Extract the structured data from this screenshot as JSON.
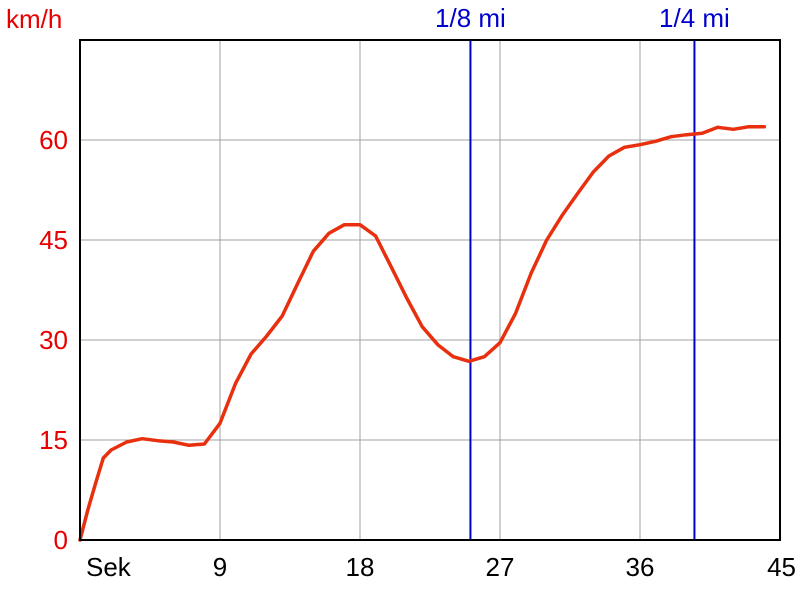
{
  "chart_data": {
    "type": "line",
    "title": "",
    "xlabel": "",
    "ylabel": "km/h",
    "x_unit_label": "Sek",
    "xlim": [
      0,
      45
    ],
    "ylim": [
      0,
      75
    ],
    "x_ticks": [
      9,
      18,
      27,
      36,
      45
    ],
    "x_tick_labels": [
      "9",
      "18",
      "27",
      "36",
      "45"
    ],
    "y_ticks": [
      0,
      15,
      30,
      45,
      60
    ],
    "y_tick_labels": [
      "0",
      "15",
      "30",
      "45",
      "60"
    ],
    "grid": true,
    "legend": "none",
    "colors": {
      "line": "#e8300e",
      "markers": "#0000cc",
      "y_text": "#e60000",
      "x_text": "#000000",
      "grid": "#a0a0a0"
    },
    "vertical_markers": [
      {
        "label": "1/8 mi",
        "x": 25.1
      },
      {
        "label": "1/4 mi",
        "x": 39.5
      }
    ],
    "series": [
      {
        "x": [
          0,
          0.5,
          1,
          1.5,
          2,
          3,
          4,
          5,
          6,
          7,
          8,
          9,
          10,
          11,
          12,
          13,
          14,
          15,
          16,
          17,
          18,
          19,
          20,
          21,
          22,
          23,
          24,
          25,
          26,
          27,
          28,
          29,
          30,
          31,
          32,
          33,
          34,
          35,
          36,
          37,
          38,
          39,
          40,
          41,
          42,
          43,
          44
        ],
        "values": [
          0,
          4.5,
          8.5,
          12.3,
          13.5,
          14.7,
          15.2,
          14.9,
          14.7,
          14.2,
          14.4,
          17.5,
          23.5,
          27.9,
          30.6,
          33.6,
          38.5,
          43.3,
          46.0,
          47.3,
          47.3,
          45.6,
          41.0,
          36.3,
          32.0,
          29.3,
          27.5,
          26.8,
          27.5,
          29.6,
          34.0,
          40.0,
          45.0,
          48.7,
          52.0,
          55.2,
          57.6,
          58.9,
          59.3,
          59.8,
          60.5,
          60.8,
          61.0,
          61.9,
          61.6,
          62.0,
          62.0
        ]
      }
    ]
  }
}
